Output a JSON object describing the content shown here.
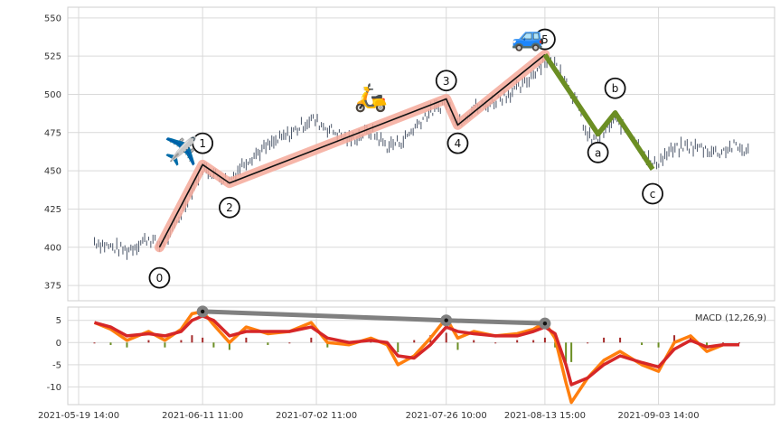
{
  "chart_data": [
    {
      "type": "line",
      "panel": "price",
      "ylim": [
        365,
        557
      ],
      "yticks": [
        375,
        400,
        425,
        450,
        475,
        500,
        525,
        550
      ],
      "xlim": [
        "2021-05-19 14:00",
        "2021-09-22 12:00"
      ],
      "xticks": [
        "2021-05-19 14:00",
        "2021-06-11 11:00",
        "2021-07-02 11:00",
        "2021-07-26 10:00",
        "2021-08-13 15:00",
        "2021-09-03 14:00"
      ],
      "grid": true,
      "impulse_waves": [
        {
          "label": "0",
          "x": "2021-06-03 12:00",
          "y": 400
        },
        {
          "label": "1",
          "x": "2021-06-11 11:00",
          "y": 454
        },
        {
          "label": "2",
          "x": "2021-06-16 10:00",
          "y": 442
        },
        {
          "label": "3",
          "x": "2021-07-26 10:00",
          "y": 497
        },
        {
          "label": "4",
          "x": "2021-07-28 13:00",
          "y": 480
        },
        {
          "label": "5",
          "x": "2021-08-13 15:00",
          "y": 526
        }
      ],
      "correction_waves": [
        {
          "label": "5",
          "x": "2021-08-13 15:00",
          "y": 526
        },
        {
          "label": "a",
          "x": "2021-08-23 10:00",
          "y": 474
        },
        {
          "label": "b",
          "x": "2021-08-26 14:00",
          "y": 488
        },
        {
          "label": "c",
          "x": "2021-09-02 12:00",
          "y": 451
        }
      ],
      "label_offsets": {
        "0": -20,
        "1": 14,
        "2": -16,
        "3": 12,
        "4": -12,
        "5": 10,
        "a": -12,
        "b": 16,
        "c": -16
      },
      "price_series": [
        {
          "x": "2021-05-22 12:00",
          "y": 404
        },
        {
          "x": "2021-05-25 12:00",
          "y": 400
        },
        {
          "x": "2021-05-28 12:00",
          "y": 398
        },
        {
          "x": "2021-06-01 12:00",
          "y": 406
        },
        {
          "x": "2021-06-03 12:00",
          "y": 401
        },
        {
          "x": "2021-06-05 12:00",
          "y": 408
        },
        {
          "x": "2021-06-07 12:00",
          "y": 422
        },
        {
          "x": "2021-06-09 12:00",
          "y": 438
        },
        {
          "x": "2021-06-11 11:00",
          "y": 452
        },
        {
          "x": "2021-06-13 12:00",
          "y": 448
        },
        {
          "x": "2021-06-16 10:00",
          "y": 444
        },
        {
          "x": "2021-06-19 12:00",
          "y": 457
        },
        {
          "x": "2021-06-23 12:00",
          "y": 466
        },
        {
          "x": "2021-06-27 12:00",
          "y": 474
        },
        {
          "x": "2021-07-01 12:00",
          "y": 484
        },
        {
          "x": "2021-07-04 12:00",
          "y": 478
        },
        {
          "x": "2021-07-08 12:00",
          "y": 470
        },
        {
          "x": "2021-07-12 12:00",
          "y": 476
        },
        {
          "x": "2021-07-15 12:00",
          "y": 466
        },
        {
          "x": "2021-07-18 12:00",
          "y": 470
        },
        {
          "x": "2021-07-22 12:00",
          "y": 486
        },
        {
          "x": "2021-07-26 10:00",
          "y": 495
        },
        {
          "x": "2021-07-28 13:00",
          "y": 482
        },
        {
          "x": "2021-07-31 12:00",
          "y": 491
        },
        {
          "x": "2021-08-03 12:00",
          "y": 494
        },
        {
          "x": "2021-08-06 12:00",
          "y": 500
        },
        {
          "x": "2021-08-09 12:00",
          "y": 505
        },
        {
          "x": "2021-08-11 12:00",
          "y": 514
        },
        {
          "x": "2021-08-13 15:00",
          "y": 523
        },
        {
          "x": "2021-08-16 12:00",
          "y": 517
        },
        {
          "x": "2021-08-19 12:00",
          "y": 494
        },
        {
          "x": "2021-08-21 12:00",
          "y": 472
        },
        {
          "x": "2021-08-23 10:00",
          "y": 470
        },
        {
          "x": "2021-08-26 14:00",
          "y": 484
        },
        {
          "x": "2021-08-30 12:00",
          "y": 470
        },
        {
          "x": "2021-09-02 12:00",
          "y": 453
        },
        {
          "x": "2021-09-05 12:00",
          "y": 462
        },
        {
          "x": "2021-09-08 12:00",
          "y": 466
        },
        {
          "x": "2021-09-11 12:00",
          "y": 465
        },
        {
          "x": "2021-09-14 12:00",
          "y": 462
        },
        {
          "x": "2021-09-17 12:00",
          "y": 466
        },
        {
          "x": "2021-09-20 12:00",
          "y": 462
        }
      ],
      "emojis": [
        {
          "icon": "airplane-icon",
          "glyph": "✈️",
          "x": "2021-06-07 12:00",
          "y": 457
        },
        {
          "icon": "scooter-icon",
          "glyph": "🛵",
          "x": "2021-07-12 12:00",
          "y": 492
        },
        {
          "icon": "car-icon",
          "glyph": "🚙",
          "x": "2021-08-10 12:00",
          "y": 532
        }
      ],
      "colors": {
        "impulse_glow": "#f4a99a",
        "impulse_line": "#111111",
        "correction_line": "#6b8e23",
        "candles": "#4a5568"
      }
    },
    {
      "type": "line",
      "panel": "macd",
      "title": "MACD (12,26,9)",
      "ylim": [
        -14,
        8
      ],
      "yticks": [
        5,
        0,
        -5,
        -10
      ],
      "grid": true,
      "series": [
        {
          "color": "#ff7f0e",
          "values": [
            {
              "x": "2021-05-22 12:00",
              "y": 4.5
            },
            {
              "x": "2021-05-25 12:00",
              "y": 3
            },
            {
              "x": "2021-05-28 12:00",
              "y": 0.5
            },
            {
              "x": "2021-06-01 12:00",
              "y": 2.5
            },
            {
              "x": "2021-06-04 12:00",
              "y": 0.5
            },
            {
              "x": "2021-06-07 12:00",
              "y": 3
            },
            {
              "x": "2021-06-09 12:00",
              "y": 6.5
            },
            {
              "x": "2021-06-11 11:00",
              "y": 7
            },
            {
              "x": "2021-06-13 12:00",
              "y": 4
            },
            {
              "x": "2021-06-16 10:00",
              "y": 0
            },
            {
              "x": "2021-06-19 12:00",
              "y": 3.5
            },
            {
              "x": "2021-06-23 12:00",
              "y": 2
            },
            {
              "x": "2021-06-27 12:00",
              "y": 2.5
            },
            {
              "x": "2021-07-01 12:00",
              "y": 4.5
            },
            {
              "x": "2021-07-04 12:00",
              "y": 0
            },
            {
              "x": "2021-07-08 12:00",
              "y": -0.5
            },
            {
              "x": "2021-07-12 12:00",
              "y": 1
            },
            {
              "x": "2021-07-15 12:00",
              "y": -0.5
            },
            {
              "x": "2021-07-17 12:00",
              "y": -5
            },
            {
              "x": "2021-07-20 12:00",
              "y": -3
            },
            {
              "x": "2021-07-23 12:00",
              "y": 1
            },
            {
              "x": "2021-07-26 10:00",
              "y": 5.5
            },
            {
              "x": "2021-07-28 13:00",
              "y": 1
            },
            {
              "x": "2021-07-31 12:00",
              "y": 2.5
            },
            {
              "x": "2021-08-04 12:00",
              "y": 1.5
            },
            {
              "x": "2021-08-08 12:00",
              "y": 2
            },
            {
              "x": "2021-08-11 12:00",
              "y": 3
            },
            {
              "x": "2021-08-13 15:00",
              "y": 4.5
            },
            {
              "x": "2021-08-15 12:00",
              "y": 1
            },
            {
              "x": "2021-08-17 12:00",
              "y": -9
            },
            {
              "x": "2021-08-18 12:00",
              "y": -13.5
            },
            {
              "x": "2021-08-21 12:00",
              "y": -8
            },
            {
              "x": "2021-08-24 12:00",
              "y": -4
            },
            {
              "x": "2021-08-27 12:00",
              "y": -2
            },
            {
              "x": "2021-08-31 12:00",
              "y": -5
            },
            {
              "x": "2021-09-03 14:00",
              "y": -6.5
            },
            {
              "x": "2021-09-06 12:00",
              "y": 0
            },
            {
              "x": "2021-09-09 12:00",
              "y": 1.5
            },
            {
              "x": "2021-09-12 12:00",
              "y": -2
            },
            {
              "x": "2021-09-15 12:00",
              "y": -0.5
            },
            {
              "x": "2021-09-18 12:00",
              "y": -0.5
            }
          ]
        },
        {
          "color": "#d62728",
          "values": [
            {
              "x": "2021-05-22 12:00",
              "y": 4.5
            },
            {
              "x": "2021-05-25 12:00",
              "y": 3.5
            },
            {
              "x": "2021-05-28 12:00",
              "y": 1.5
            },
            {
              "x": "2021-06-01 12:00",
              "y": 2
            },
            {
              "x": "2021-06-04 12:00",
              "y": 1.5
            },
            {
              "x": "2021-06-07 12:00",
              "y": 2.5
            },
            {
              "x": "2021-06-09 12:00",
              "y": 5
            },
            {
              "x": "2021-06-11 11:00",
              "y": 6
            },
            {
              "x": "2021-06-13 12:00",
              "y": 5
            },
            {
              "x": "2021-06-16 10:00",
              "y": 1.5
            },
            {
              "x": "2021-06-19 12:00",
              "y": 2.5
            },
            {
              "x": "2021-06-23 12:00",
              "y": 2.5
            },
            {
              "x": "2021-06-27 12:00",
              "y": 2.5
            },
            {
              "x": "2021-07-01 12:00",
              "y": 3.5
            },
            {
              "x": "2021-07-04 12:00",
              "y": 1
            },
            {
              "x": "2021-07-08 12:00",
              "y": 0
            },
            {
              "x": "2021-07-12 12:00",
              "y": 0.5
            },
            {
              "x": "2021-07-15 12:00",
              "y": 0
            },
            {
              "x": "2021-07-17 12:00",
              "y": -3
            },
            {
              "x": "2021-07-20 12:00",
              "y": -3.5
            },
            {
              "x": "2021-07-23 12:00",
              "y": -0.5
            },
            {
              "x": "2021-07-26 10:00",
              "y": 3.5
            },
            {
              "x": "2021-07-28 13:00",
              "y": 2.5
            },
            {
              "x": "2021-07-31 12:00",
              "y": 2
            },
            {
              "x": "2021-08-04 12:00",
              "y": 1.5
            },
            {
              "x": "2021-08-08 12:00",
              "y": 1.5
            },
            {
              "x": "2021-08-11 12:00",
              "y": 2.5
            },
            {
              "x": "2021-08-13 15:00",
              "y": 3.5
            },
            {
              "x": "2021-08-15 12:00",
              "y": 2
            },
            {
              "x": "2021-08-17 12:00",
              "y": -5
            },
            {
              "x": "2021-08-18 12:00",
              "y": -9.5
            },
            {
              "x": "2021-08-21 12:00",
              "y": -8
            },
            {
              "x": "2021-08-24 12:00",
              "y": -5
            },
            {
              "x": "2021-08-27 12:00",
              "y": -3
            },
            {
              "x": "2021-08-31 12:00",
              "y": -4.5
            },
            {
              "x": "2021-09-03 14:00",
              "y": -5.5
            },
            {
              "x": "2021-09-06 12:00",
              "y": -1.5
            },
            {
              "x": "2021-09-09 12:00",
              "y": 0.5
            },
            {
              "x": "2021-09-12 12:00",
              "y": -1
            },
            {
              "x": "2021-09-15 12:00",
              "y": -0.5
            },
            {
              "x": "2021-09-18 12:00",
              "y": -0.5
            }
          ]
        }
      ],
      "divergence_points": [
        {
          "x": "2021-06-11 11:00",
          "y": 7
        },
        {
          "x": "2021-07-26 10:00",
          "y": 5
        },
        {
          "x": "2021-08-13 15:00",
          "y": 4.3
        }
      ],
      "colors": {
        "divergence_line": "#808080",
        "hist_pos": "#a52a2a",
        "hist_neg": "#6b8e23"
      }
    }
  ]
}
